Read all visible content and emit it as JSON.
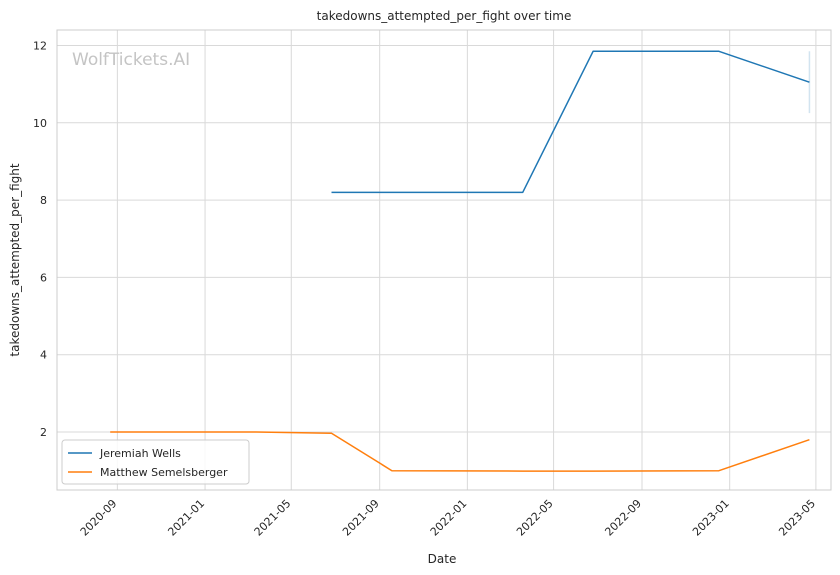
{
  "watermark": "WolfTickets.AI",
  "chart_data": {
    "type": "line",
    "title": "takedowns_attempted_per_fight over time",
    "xlabel": "Date",
    "ylabel": "takedowns_attempted_per_fight",
    "x_axis_type": "date",
    "xlim": [
      "2020-06-09",
      "2023-05-22"
    ],
    "ylim": [
      0.5,
      12.4
    ],
    "x_ticks": [
      "2020-09",
      "2021-01",
      "2021-05",
      "2021-09",
      "2022-01",
      "2022-05",
      "2022-09",
      "2023-01",
      "2023-05"
    ],
    "y_ticks": [
      2,
      4,
      6,
      8,
      10,
      12
    ],
    "grid": true,
    "legend_position": "lower-left",
    "series": [
      {
        "name": "Jeremiah Wells",
        "color": "#1f77b4",
        "points": [
          {
            "x": "2021-06-26",
            "y": 8.2
          },
          {
            "x": "2022-03-19",
            "y": 8.2
          },
          {
            "x": "2022-06-25",
            "y": 11.85
          },
          {
            "x": "2022-12-17",
            "y": 11.85
          },
          {
            "x": "2023-04-22",
            "y": 11.05
          }
        ],
        "error_band": {
          "x": "2023-04-22",
          "low": 10.25,
          "high": 11.85
        }
      },
      {
        "name": "Matthew Semelsberger",
        "color": "#ff7f0e",
        "points": [
          {
            "x": "2020-08-22",
            "y": 2.0
          },
          {
            "x": "2021-03-13",
            "y": 2.0
          },
          {
            "x": "2021-06-26",
            "y": 1.97
          },
          {
            "x": "2021-09-18",
            "y": 1.0
          },
          {
            "x": "2022-03-19",
            "y": 0.99
          },
          {
            "x": "2022-06-25",
            "y": 0.99
          },
          {
            "x": "2022-12-17",
            "y": 1.0
          },
          {
            "x": "2023-04-22",
            "y": 1.8
          }
        ]
      }
    ]
  }
}
